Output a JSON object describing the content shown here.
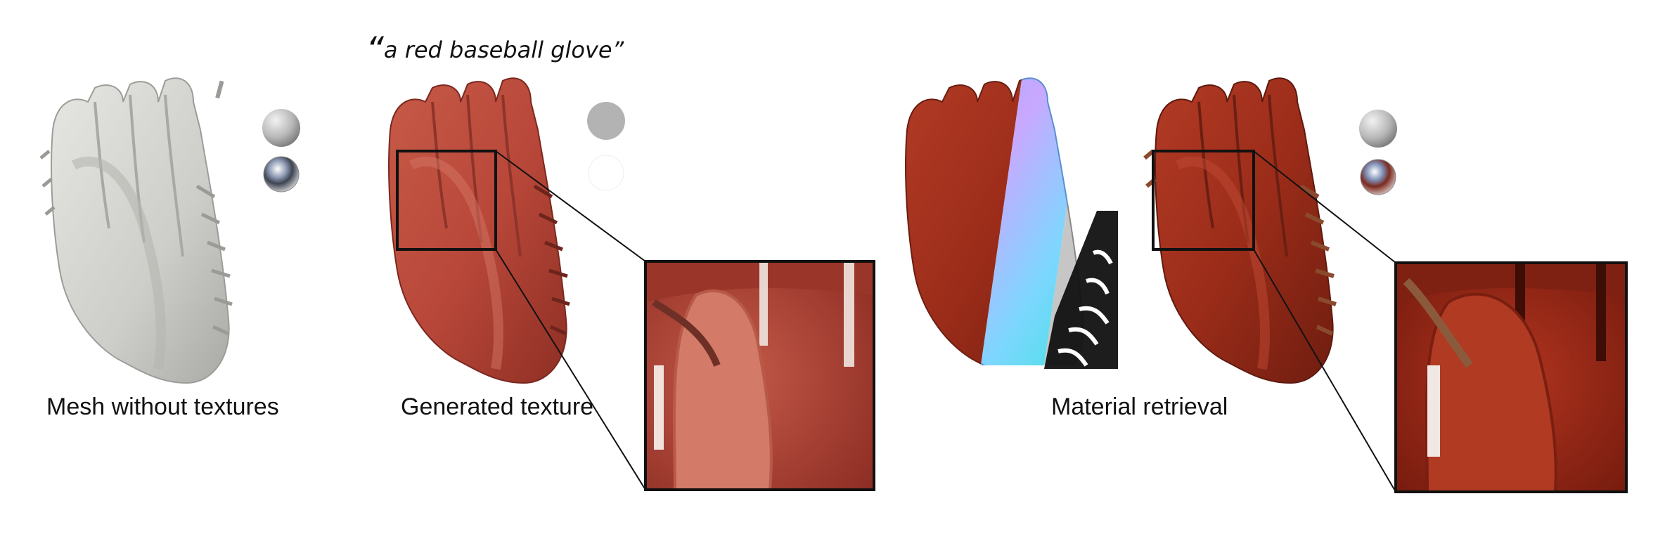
{
  "prompt": {
    "text": "a red baseball glove",
    "open_quote": "“",
    "close_quote": "”"
  },
  "panels": [
    {
      "caption": "Mesh without textures"
    },
    {
      "caption": "Generated texture"
    },
    {
      "caption": "Material retrieval"
    }
  ],
  "colors": {
    "mesh_gray": "#cfcfcc",
    "glove_red": "#b94a38",
    "leather_red": "#a3321f",
    "zoom_frame": "#111111"
  },
  "icons": [
    "diffuse-sphere-icon",
    "chrome-sphere-icon"
  ]
}
